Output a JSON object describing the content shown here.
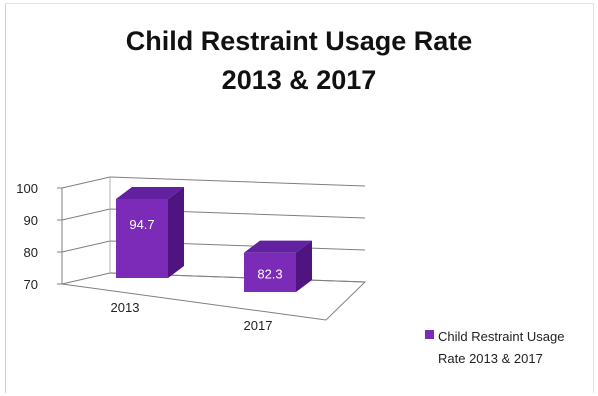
{
  "chart_data": {
    "type": "bar",
    "title_lines": [
      "Child Restraint Usage Rate",
      "2013 & 2017"
    ],
    "categories": [
      "2013",
      "2017"
    ],
    "series": [
      {
        "name": "Child Restraint Usage Rate 2013 & 2017",
        "values": [
          94.7,
          82.3
        ]
      }
    ],
    "data_labels": [
      "94.7",
      "82.3"
    ],
    "yticks": [
      70,
      80,
      90,
      100
    ],
    "ylim": [
      70,
      100
    ],
    "xlabel": "",
    "ylabel": "",
    "grid": true,
    "legend": "bottom-right",
    "three_d": true
  },
  "colors": {
    "bar_front": "#7b2bb8",
    "bar_side": "#4f1480",
    "bar_top": "#6221a0",
    "label_text": "#ffffff",
    "grid": "#7f7f7f"
  }
}
